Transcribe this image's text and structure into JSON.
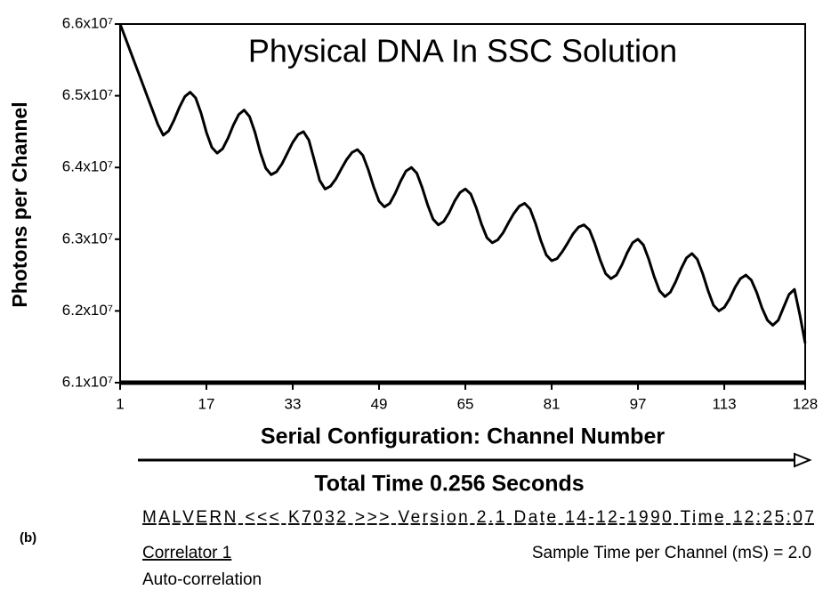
{
  "chart_data": {
    "type": "line",
    "title": "Physical DNA In SSC Solution",
    "y_label": "Photons per Channel",
    "x_label": "Serial Configuration: Channel Number",
    "annotations": [
      "Total Time 0.256  Seconds",
      "(b)",
      "MALVERN  <<<  K7032  >>>  Version 2.1  Date  14-12-1990  Time  12:25:07",
      "Correlator 1",
      "Sample Time per Channel  (mS)  =  2.0",
      "Auto-correlation"
    ],
    "xlim": [
      1,
      128
    ],
    "xticks": [
      1,
      17,
      33,
      49,
      65,
      81,
      97,
      113,
      128
    ],
    "ylim": [
      61000000,
      66000000
    ],
    "yticks": [
      {
        "value": 61000000,
        "label": "6.1x10⁷"
      },
      {
        "value": 62000000,
        "label": "6.2x10⁷"
      },
      {
        "value": 63000000,
        "label": "6.3x10⁷"
      },
      {
        "value": 64000000,
        "label": "6.4x10⁷"
      },
      {
        "value": 65000000,
        "label": "6.5x10⁷"
      },
      {
        "value": 66000000,
        "label": "6.6x10⁷"
      }
    ],
    "color": "#000000",
    "x": [
      1,
      2,
      3,
      4,
      5,
      6,
      7,
      8,
      9,
      10,
      11,
      12,
      13,
      14,
      15,
      16,
      17,
      18,
      19,
      20,
      21,
      22,
      23,
      24,
      25,
      26,
      27,
      28,
      29,
      30,
      31,
      32,
      33,
      34,
      35,
      36,
      37,
      38,
      39,
      40,
      41,
      42,
      43,
      44,
      45,
      46,
      47,
      48,
      49,
      50,
      51,
      52,
      53,
      54,
      55,
      56,
      57,
      58,
      59,
      60,
      61,
      62,
      63,
      64,
      65,
      66,
      67,
      68,
      69,
      70,
      71,
      72,
      73,
      74,
      75,
      76,
      77,
      78,
      79,
      80,
      81,
      82,
      83,
      84,
      85,
      86,
      87,
      88,
      89,
      90,
      91,
      92,
      93,
      94,
      95,
      96,
      97,
      98,
      99,
      100,
      101,
      102,
      103,
      104,
      105,
      106,
      107,
      108,
      109,
      110,
      111,
      112,
      113,
      114,
      115,
      116,
      117,
      118,
      119,
      120,
      121,
      122,
      123,
      124,
      125,
      126,
      127,
      128
    ],
    "values": [
      66000000,
      65800000,
      65600000,
      65400000,
      65200000,
      65000000,
      64800000,
      64600000,
      64450000,
      64510000,
      64660000,
      64840000,
      64990000,
      65050000,
      64970000,
      64760000,
      64490000,
      64280000,
      64200000,
      64260000,
      64410000,
      64590000,
      64740000,
      64800000,
      64710000,
      64490000,
      64210000,
      63990000,
      63900000,
      63940000,
      64050000,
      64200000,
      64350000,
      64460000,
      64500000,
      64380000,
      64100000,
      63820000,
      63700000,
      63740000,
      63840000,
      63980000,
      64110000,
      64210000,
      64250000,
      64170000,
      63970000,
      63730000,
      63530000,
      63450000,
      63500000,
      63640000,
      63810000,
      63950000,
      64000000,
      63920000,
      63720000,
      63480000,
      63280000,
      63200000,
      63250000,
      63370000,
      63530000,
      63650000,
      63700000,
      63630000,
      63440000,
      63210000,
      63020000,
      62950000,
      62990000,
      63090000,
      63230000,
      63360000,
      63460000,
      63500000,
      63420000,
      63220000,
      62980000,
      62780000,
      62700000,
      62730000,
      62830000,
      62950000,
      63080000,
      63170000,
      63200000,
      63130000,
      62940000,
      62710000,
      62520000,
      62450000,
      62500000,
      62640000,
      62810000,
      62950000,
      63000000,
      62920000,
      62720000,
      62480000,
      62280000,
      62200000,
      62260000,
      62410000,
      62590000,
      62740000,
      62800000,
      62720000,
      62520000,
      62280000,
      62080000,
      62000000,
      62050000,
      62170000,
      62330000,
      62450000,
      62500000,
      62430000,
      62260000,
      62040000,
      61870000,
      61800000,
      61870000,
      62050000,
      62230000,
      62300000,
      61950000,
      61550000
    ]
  }
}
